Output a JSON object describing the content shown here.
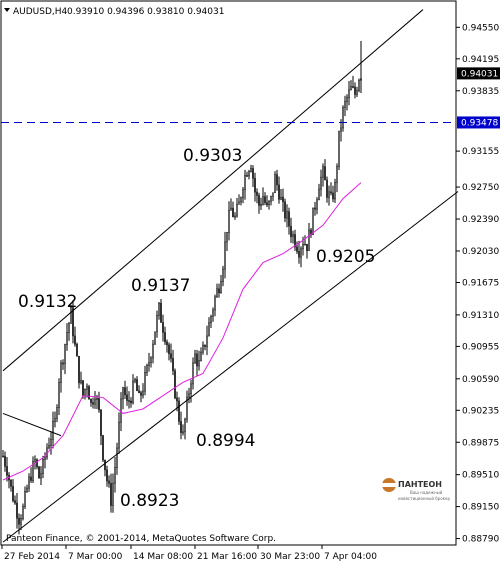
{
  "header": {
    "symbol_timeframe": "AUDUSD,H4",
    "ohlc": "0.93910 0.94396 0.93810 0.94031"
  },
  "price_axis": {
    "labels": [
      "0.94550",
      "0.94195",
      "0.93835",
      "0.93155",
      "0.92750",
      "0.92390",
      "0.92030",
      "0.91675",
      "0.91310",
      "0.90955",
      "0.90590",
      "0.90235",
      "0.89875",
      "0.89510",
      "0.89150",
      "0.88790"
    ],
    "current_price": "0.94031",
    "hline_price": "0.93478"
  },
  "time_axis": {
    "labels": [
      "27 Feb 2014",
      "7 Mar 00:00",
      "14 Mar 08:00",
      "21 Mar 16:00",
      "30 Mar 23:00",
      "7 Apr 04:00"
    ]
  },
  "annotations": [
    "0.9303",
    "0.9137",
    "0.9132",
    "0.9205",
    "0.8994",
    "0.8923"
  ],
  "copyright": "Panteon Finance, © 2001-2014, MetaQuotes Software Corp.",
  "logo": {
    "name": "ПАНТЕОН",
    "tagline_1": "Ваш надежный",
    "tagline_2": "инвестиционный брокер"
  },
  "colors": {
    "background": "#ffffff",
    "candles": "#000000",
    "moving_average": "#e020e0",
    "horizontal_line": "#0000cc",
    "price_tag": "#000000",
    "hline_tag": "#0000cc",
    "logo_accent": "#c8782a"
  },
  "chart_data": {
    "type": "candlestick",
    "symbol": "AUDUSD",
    "timeframe": "H4",
    "ylim": [
      0.8874,
      0.947
    ],
    "x_ticks": [
      "27 Feb 2014",
      "7 Mar 00:00",
      "14 Mar 08:00",
      "21 Mar 16:00",
      "30 Mar 23:00",
      "7 Apr 04:00"
    ],
    "horizontal_line": 0.93478,
    "close_path": [
      [
        0,
        0.8972
      ],
      [
        4,
        0.8958
      ],
      [
        8,
        0.8935
      ],
      [
        12,
        0.8918
      ],
      [
        16,
        0.8902
      ],
      [
        20,
        0.8912
      ],
      [
        24,
        0.8935
      ],
      [
        28,
        0.8952
      ],
      [
        32,
        0.8966
      ],
      [
        36,
        0.8948
      ],
      [
        40,
        0.896
      ],
      [
        44,
        0.8982
      ],
      [
        48,
        0.8995
      ],
      [
        52,
        0.901
      ],
      [
        56,
        0.906
      ],
      [
        60,
        0.9085
      ],
      [
        64,
        0.9112
      ],
      [
        68,
        0.9132
      ],
      [
        72,
        0.9095
      ],
      [
        76,
        0.9062
      ],
      [
        80,
        0.904
      ],
      [
        84,
        0.9055
      ],
      [
        88,
        0.903
      ],
      [
        92,
        0.9045
      ],
      [
        96,
        0.902
      ],
      [
        100,
        0.8975
      ],
      [
        104,
        0.8945
      ],
      [
        108,
        0.8923
      ],
      [
        112,
        0.896
      ],
      [
        116,
        0.9005
      ],
      [
        120,
        0.905
      ],
      [
        124,
        0.903
      ],
      [
        128,
        0.904
      ],
      [
        132,
        0.9055
      ],
      [
        136,
        0.9035
      ],
      [
        140,
        0.905
      ],
      [
        144,
        0.9068
      ],
      [
        148,
        0.909
      ],
      [
        152,
        0.9115
      ],
      [
        156,
        0.9137
      ],
      [
        160,
        0.9118
      ],
      [
        164,
        0.91
      ],
      [
        168,
        0.9075
      ],
      [
        172,
        0.9045
      ],
      [
        176,
        0.9015
      ],
      [
        180,
        0.8994
      ],
      [
        184,
        0.903
      ],
      [
        188,
        0.906
      ],
      [
        192,
        0.9085
      ],
      [
        196,
        0.9075
      ],
      [
        200,
        0.909
      ],
      [
        204,
        0.911
      ],
      [
        208,
        0.913
      ],
      [
        212,
        0.915
      ],
      [
        216,
        0.9165
      ],
      [
        220,
        0.919
      ],
      [
        224,
        0.923
      ],
      [
        228,
        0.925
      ],
      [
        232,
        0.924
      ],
      [
        236,
        0.9255
      ],
      [
        240,
        0.928
      ],
      [
        244,
        0.9295
      ],
      [
        248,
        0.9303
      ],
      [
        252,
        0.927
      ],
      [
        256,
        0.9255
      ],
      [
        260,
        0.9265
      ],
      [
        264,
        0.925
      ],
      [
        268,
        0.926
      ],
      [
        272,
        0.9285
      ],
      [
        276,
        0.927
      ],
      [
        280,
        0.925
      ],
      [
        284,
        0.924
      ],
      [
        288,
        0.9225
      ],
      [
        292,
        0.9215
      ],
      [
        296,
        0.9205
      ],
      [
        300,
        0.9215
      ],
      [
        304,
        0.921
      ],
      [
        308,
        0.923
      ],
      [
        312,
        0.9255
      ],
      [
        316,
        0.928
      ],
      [
        320,
        0.929
      ],
      [
        324,
        0.927
      ],
      [
        328,
        0.926
      ],
      [
        332,
        0.9275
      ],
      [
        336,
        0.933
      ],
      [
        340,
        0.936
      ],
      [
        344,
        0.9375
      ],
      [
        348,
        0.9385
      ],
      [
        352,
        0.938
      ],
      [
        356,
        0.94
      ],
      [
        358,
        0.9403
      ]
    ],
    "moving_average": [
      [
        0,
        0.8945
      ],
      [
        20,
        0.8955
      ],
      [
        40,
        0.897
      ],
      [
        60,
        0.8995
      ],
      [
        80,
        0.904
      ],
      [
        100,
        0.9038
      ],
      [
        120,
        0.902
      ],
      [
        140,
        0.9025
      ],
      [
        160,
        0.904
      ],
      [
        180,
        0.9055
      ],
      [
        200,
        0.9065
      ],
      [
        220,
        0.9105
      ],
      [
        240,
        0.916
      ],
      [
        260,
        0.919
      ],
      [
        280,
        0.92
      ],
      [
        300,
        0.9215
      ],
      [
        320,
        0.9232
      ],
      [
        340,
        0.9262
      ],
      [
        358,
        0.928
      ]
    ],
    "channel_lines": [
      {
        "name": "upper",
        "from": [
          0,
          0.9068
        ],
        "to": [
          420,
          0.9475
        ]
      },
      {
        "name": "lower",
        "from": [
          0,
          0.8875
        ],
        "to": [
          455,
          0.927
        ]
      },
      {
        "name": "left-segment",
        "from": [
          0,
          0.902
        ],
        "to": [
          58,
          0.8995
        ]
      }
    ]
  }
}
